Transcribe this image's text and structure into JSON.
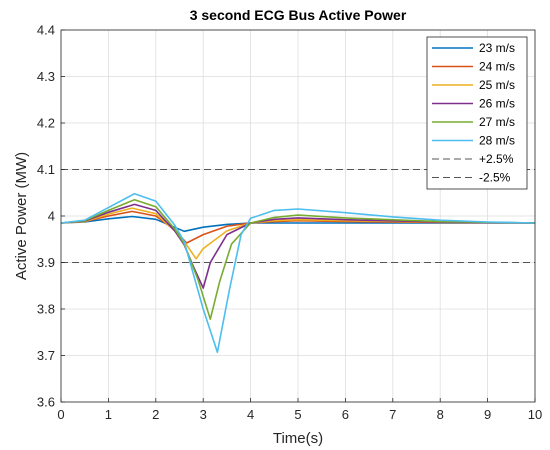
{
  "chart_data": {
    "type": "line",
    "title": "3 second ECG Bus Active Power",
    "xlabel": "Time(s)",
    "ylabel": "Active Power (MW)",
    "xlim": [
      0,
      10
    ],
    "ylim": [
      3.6,
      4.4
    ],
    "xticks": [
      "0",
      "1",
      "2",
      "3",
      "4",
      "5",
      "6",
      "7",
      "8",
      "9",
      "10"
    ],
    "yticks": [
      "3.6",
      "3.7",
      "3.8",
      "3.9",
      "4",
      "4.1",
      "4.2",
      "4.3",
      "4.4"
    ],
    "grid": true,
    "legend_position": "top-right",
    "series": [
      {
        "name": "23 m/s",
        "color": "#0072BD",
        "style": "solid",
        "points": [
          [
            0,
            3.985
          ],
          [
            0.5,
            3.987
          ],
          [
            1.0,
            3.994
          ],
          [
            1.5,
            3.999
          ],
          [
            2.0,
            3.993
          ],
          [
            2.3,
            3.98
          ],
          [
            2.6,
            3.967
          ],
          [
            3.0,
            3.976
          ],
          [
            3.5,
            3.982
          ],
          [
            4.0,
            3.985
          ],
          [
            5.0,
            3.985
          ],
          [
            6.0,
            3.985
          ],
          [
            8.0,
            3.985
          ],
          [
            10.0,
            3.985
          ]
        ]
      },
      {
        "name": "24 m/s",
        "color": "#D95319",
        "style": "solid",
        "points": [
          [
            0,
            3.985
          ],
          [
            0.5,
            3.988
          ],
          [
            1.0,
            4.0
          ],
          [
            1.5,
            4.01
          ],
          [
            2.0,
            4.0
          ],
          [
            2.4,
            3.97
          ],
          [
            2.65,
            3.942
          ],
          [
            3.0,
            3.96
          ],
          [
            3.5,
            3.978
          ],
          [
            4.0,
            3.985
          ],
          [
            4.5,
            3.988
          ],
          [
            5.0,
            3.99
          ],
          [
            6.0,
            3.988
          ],
          [
            8.0,
            3.986
          ],
          [
            10.0,
            3.985
          ]
        ]
      },
      {
        "name": "25 m/s",
        "color": "#EDB120",
        "style": "solid",
        "points": [
          [
            0,
            3.985
          ],
          [
            0.5,
            3.988
          ],
          [
            1.0,
            4.004
          ],
          [
            1.5,
            4.017
          ],
          [
            2.0,
            4.005
          ],
          [
            2.4,
            3.968
          ],
          [
            2.65,
            3.938
          ],
          [
            2.85,
            3.908
          ],
          [
            3.0,
            3.93
          ],
          [
            3.5,
            3.968
          ],
          [
            4.0,
            3.985
          ],
          [
            4.5,
            3.99
          ],
          [
            5.0,
            3.992
          ],
          [
            6.0,
            3.99
          ],
          [
            8.0,
            3.987
          ],
          [
            10.0,
            3.985
          ]
        ]
      },
      {
        "name": "26 m/s",
        "color": "#7E2F8E",
        "style": "solid",
        "points": [
          [
            0,
            3.985
          ],
          [
            0.5,
            3.989
          ],
          [
            1.0,
            4.008
          ],
          [
            1.55,
            4.025
          ],
          [
            2.0,
            4.012
          ],
          [
            2.4,
            3.968
          ],
          [
            2.6,
            3.938
          ],
          [
            2.8,
            3.89
          ],
          [
            3.0,
            3.845
          ],
          [
            3.15,
            3.9
          ],
          [
            3.5,
            3.96
          ],
          [
            4.0,
            3.985
          ],
          [
            4.5,
            3.993
          ],
          [
            5.0,
            3.996
          ],
          [
            6.0,
            3.992
          ],
          [
            8.0,
            3.987
          ],
          [
            10.0,
            3.985
          ]
        ]
      },
      {
        "name": "27 m/s",
        "color": "#77AC30",
        "style": "solid",
        "points": [
          [
            0,
            3.985
          ],
          [
            0.5,
            3.99
          ],
          [
            1.0,
            4.012
          ],
          [
            1.55,
            4.035
          ],
          [
            2.0,
            4.02
          ],
          [
            2.4,
            3.972
          ],
          [
            2.6,
            3.94
          ],
          [
            2.9,
            3.86
          ],
          [
            3.15,
            3.778
          ],
          [
            3.35,
            3.86
          ],
          [
            3.6,
            3.94
          ],
          [
            4.0,
            3.985
          ],
          [
            4.5,
            3.997
          ],
          [
            5.0,
            4.002
          ],
          [
            6.0,
            3.996
          ],
          [
            8.0,
            3.988
          ],
          [
            10.0,
            3.985
          ]
        ]
      },
      {
        "name": "28 m/s",
        "color": "#4DBEEE",
        "style": "solid",
        "points": [
          [
            0,
            3.985
          ],
          [
            0.5,
            3.991
          ],
          [
            1.0,
            4.018
          ],
          [
            1.55,
            4.048
          ],
          [
            2.0,
            4.032
          ],
          [
            2.4,
            3.98
          ],
          [
            2.6,
            3.945
          ],
          [
            3.0,
            3.8
          ],
          [
            3.3,
            3.707
          ],
          [
            3.55,
            3.84
          ],
          [
            3.8,
            3.96
          ],
          [
            4.0,
            3.995
          ],
          [
            4.5,
            4.012
          ],
          [
            5.0,
            4.015
          ],
          [
            6.0,
            4.007
          ],
          [
            7.0,
            3.998
          ],
          [
            8.0,
            3.991
          ],
          [
            9.0,
            3.987
          ],
          [
            10.0,
            3.985
          ]
        ]
      },
      {
        "name": "+2.5%",
        "color": "#555555",
        "style": "dashed",
        "points": [
          [
            0,
            4.1
          ],
          [
            10,
            4.1
          ]
        ]
      },
      {
        "name": "-2.5%",
        "color": "#555555",
        "style": "dashed",
        "points": [
          [
            0,
            3.9
          ],
          [
            10,
            3.9
          ]
        ]
      }
    ]
  }
}
